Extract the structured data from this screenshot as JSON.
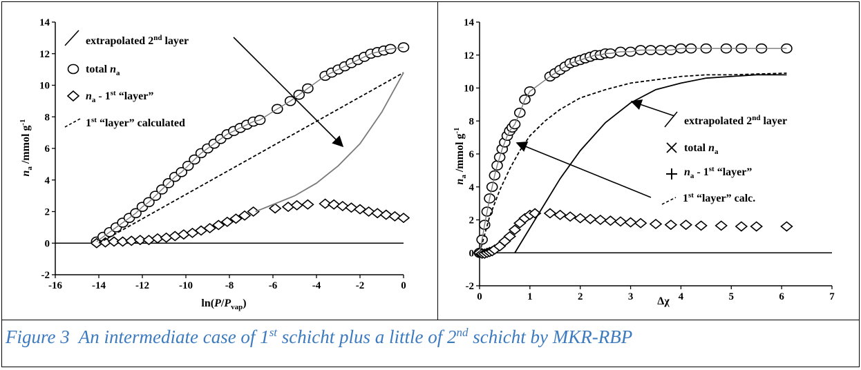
{
  "caption": {
    "figure": "Figure 3",
    "t1": "An intermediate case of 1",
    "s1": "st",
    "t2": " schicht plus a little of 2",
    "s2": "nd",
    "t3": " schicht by MKR-RBP"
  },
  "colors": {
    "line": "#000000",
    "curve_grey": "#7a7a7a",
    "caption": "#3c7abf"
  },
  "chart_data": [
    {
      "type": "scatter",
      "xlabel": "ln(P/Pvap)",
      "ylabel": "na /mmol g-1",
      "xlim": [
        -16,
        0
      ],
      "ylim": [
        -2,
        14
      ],
      "xticks": [
        -16,
        -14,
        -12,
        -10,
        -8,
        -6,
        -4,
        -2,
        0
      ],
      "yticks": [
        -2,
        0,
        2,
        4,
        6,
        8,
        10,
        12,
        14
      ],
      "grid": false,
      "legend": [
        "extrapolated 2nd layer",
        "total na",
        "na - 1st “layer”",
        "1st “layer” calculated"
      ],
      "series": [
        {
          "name": "total na",
          "marker": "circle",
          "x": [
            -14.1,
            -13.8,
            -13.5,
            -13.2,
            -12.9,
            -12.6,
            -12.3,
            -12.0,
            -11.7,
            -11.4,
            -11.1,
            -10.8,
            -10.5,
            -10.2,
            -9.9,
            -9.6,
            -9.3,
            -9.0,
            -8.7,
            -8.4,
            -8.1,
            -7.8,
            -7.5,
            -7.2,
            -6.9,
            -6.6,
            -5.8,
            -5.2,
            -4.8,
            -4.4,
            -3.6,
            -3.3,
            -3.0,
            -2.7,
            -2.4,
            -2.1,
            -1.8,
            -1.5,
            -1.2,
            -0.9,
            -0.6,
            0
          ],
          "y": [
            0.1,
            0.4,
            0.7,
            1.0,
            1.3,
            1.6,
            1.9,
            2.3,
            2.6,
            3.0,
            3.4,
            3.8,
            4.2,
            4.5,
            4.9,
            5.3,
            5.7,
            6.0,
            6.3,
            6.6,
            6.9,
            7.1,
            7.3,
            7.5,
            7.7,
            7.8,
            8.5,
            9.0,
            9.4,
            9.8,
            10.6,
            10.8,
            11.0,
            11.2,
            11.4,
            11.6,
            11.8,
            12.0,
            12.1,
            12.2,
            12.3,
            12.4
          ]
        },
        {
          "name": "na - 1st “layer”",
          "marker": "diamond",
          "x": [
            -14.1,
            -13.7,
            -13.3,
            -12.9,
            -12.5,
            -12.1,
            -11.7,
            -11.3,
            -10.9,
            -10.5,
            -10.1,
            -9.7,
            -9.3,
            -8.9,
            -8.5,
            -8.1,
            -7.7,
            -7.3,
            -6.9,
            -5.9,
            -5.3,
            -4.9,
            -4.4,
            -3.6,
            -3.2,
            -2.8,
            -2.4,
            -2.0,
            -1.6,
            -1.2,
            -0.8,
            -0.4,
            0
          ],
          "y": [
            0,
            0.05,
            0.1,
            0.1,
            0.15,
            0.2,
            0.2,
            0.3,
            0.35,
            0.45,
            0.55,
            0.65,
            0.8,
            0.95,
            1.15,
            1.35,
            1.55,
            1.75,
            2.0,
            2.2,
            2.3,
            2.4,
            2.45,
            2.5,
            2.45,
            2.35,
            2.25,
            2.15,
            2.0,
            1.9,
            1.8,
            1.7,
            1.6
          ]
        },
        {
          "name": "1st “layer” calculated",
          "style": "dashed",
          "x": [
            -14,
            0
          ],
          "y": [
            0,
            10.8
          ]
        },
        {
          "name": "extrapolated 2nd layer",
          "style": "solid-grey",
          "x": [
            -6.8,
            -5,
            -4,
            -3,
            -2,
            -1,
            0
          ],
          "y": [
            2.0,
            3.0,
            3.8,
            4.9,
            6.3,
            8.3,
            10.8
          ]
        }
      ]
    },
    {
      "type": "scatter",
      "xlabel": "Δχ",
      "ylabel": "na /mmol g-1",
      "xlim": [
        0,
        7
      ],
      "ylim": [
        -2,
        14
      ],
      "xticks": [
        0,
        1,
        2,
        3,
        4,
        5,
        6,
        7
      ],
      "yticks": [
        -2,
        0,
        2,
        4,
        6,
        8,
        10,
        12,
        14
      ],
      "grid": false,
      "legend": [
        "extrapolated 2nd layer",
        "total na",
        "na - 1st “layer”",
        "1st “layer” calc."
      ],
      "series": [
        {
          "name": "total na",
          "marker": "circle",
          "x": [
            0,
            0.05,
            0.1,
            0.15,
            0.2,
            0.25,
            0.3,
            0.35,
            0.4,
            0.45,
            0.5,
            0.55,
            0.6,
            0.65,
            0.7,
            0.8,
            0.9,
            1.0,
            1.4,
            1.5,
            1.6,
            1.7,
            1.8,
            1.9,
            2.0,
            2.1,
            2.2,
            2.3,
            2.4,
            2.5,
            2.6,
            2.8,
            3.0,
            3.2,
            3.4,
            3.6,
            3.8,
            4.0,
            4.2,
            4.5,
            4.9,
            5.2,
            5.6,
            6.1
          ],
          "y": [
            0,
            0.8,
            1.7,
            2.5,
            3.3,
            4.0,
            4.7,
            5.3,
            5.8,
            6.3,
            6.7,
            7.1,
            7.4,
            7.6,
            7.8,
            8.5,
            9.3,
            9.8,
            10.7,
            10.9,
            11.1,
            11.3,
            11.5,
            11.6,
            11.7,
            11.8,
            11.9,
            12.0,
            12.0,
            12.1,
            12.1,
            12.2,
            12.2,
            12.3,
            12.3,
            12.3,
            12.3,
            12.4,
            12.4,
            12.4,
            12.4,
            12.4,
            12.4,
            12.4
          ]
        },
        {
          "name": "na - 1st “layer”",
          "marker": "diamond",
          "x": [
            0,
            0.05,
            0.1,
            0.15,
            0.2,
            0.25,
            0.3,
            0.4,
            0.5,
            0.6,
            0.7,
            0.8,
            0.9,
            1.0,
            1.1,
            1.4,
            1.6,
            1.8,
            2.0,
            2.2,
            2.4,
            2.6,
            2.8,
            3.0,
            3.2,
            3.5,
            3.8,
            4.1,
            4.4,
            4.8,
            5.2,
            5.5,
            6.1
          ],
          "y": [
            0,
            -0.05,
            -0.05,
            0,
            0.05,
            0.1,
            0.2,
            0.4,
            0.7,
            1.0,
            1.4,
            1.8,
            2.1,
            2.3,
            2.4,
            2.4,
            2.3,
            2.2,
            2.1,
            2.05,
            2.0,
            1.95,
            1.9,
            1.85,
            1.8,
            1.75,
            1.7,
            1.7,
            1.65,
            1.65,
            1.6,
            1.6,
            1.6
          ]
        },
        {
          "name": "1st “layer” calc.",
          "style": "dashed",
          "x": [
            0,
            0.2,
            0.4,
            0.6,
            0.8,
            1.0,
            1.3,
            1.6,
            2.0,
            2.5,
            3.0,
            3.5,
            4.0,
            4.5,
            5.0,
            5.5,
            6.1
          ],
          "y": [
            0,
            2.2,
            3.8,
            5.1,
            6.2,
            7.1,
            8.0,
            8.7,
            9.4,
            9.9,
            10.3,
            10.5,
            10.7,
            10.8,
            10.8,
            10.85,
            10.9
          ]
        },
        {
          "name": "extrapolated 2nd layer",
          "style": "solid-black",
          "x": [
            0.7,
            1.0,
            1.3,
            1.6,
            2.0,
            2.5,
            3.0,
            3.5,
            4.0,
            4.5,
            5.0,
            5.5,
            6.1
          ],
          "y": [
            0,
            1.5,
            3.0,
            4.5,
            6.2,
            7.9,
            9.1,
            9.9,
            10.3,
            10.6,
            10.7,
            10.8,
            10.8
          ]
        }
      ]
    }
  ]
}
